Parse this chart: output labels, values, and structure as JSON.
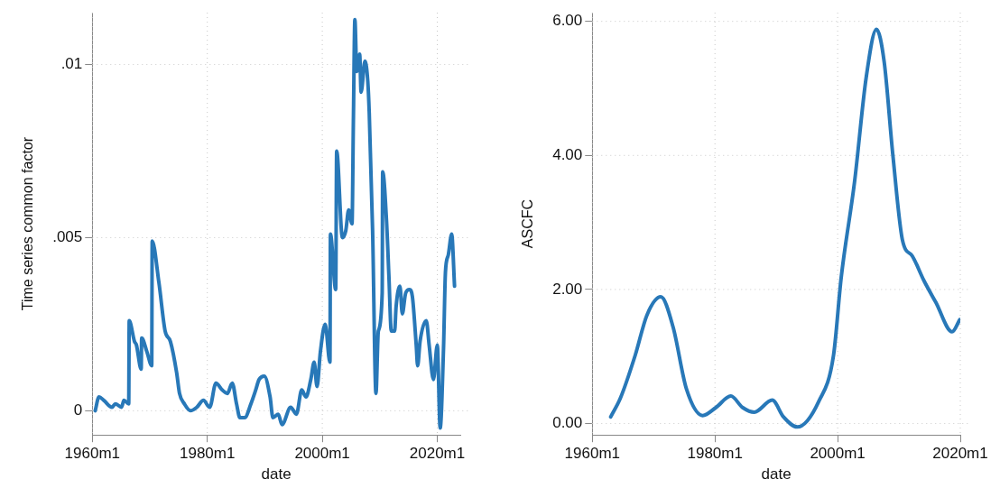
{
  "chart_data": [
    {
      "type": "line",
      "xlabel": "date",
      "ylabel": "Time series common factor",
      "color": "#2878b8",
      "marker": "none",
      "grid": true,
      "x": [
        "1960-07",
        "1961-03",
        "1962-01",
        "1963-06",
        "1964-01",
        "1965-02",
        "1965-07",
        "1966-05",
        "1966-06",
        "1967-05",
        "1967-09",
        "1968-07",
        "1968-08",
        "1969-07",
        "1970-05",
        "1970-06",
        "1971-08",
        "1972-09",
        "1973-08",
        "1974-09",
        "1975-03",
        "1976-01",
        "1977-02",
        "1978-03",
        "1979-05",
        "1980-06",
        "1981-07",
        "1982-08",
        "1983-07",
        "1984-05",
        "1985-02",
        "1985-09",
        "1986-07",
        "1987-08",
        "1988-06",
        "1989-01",
        "1989-12",
        "1990-12",
        "1991-06",
        "1992-05",
        "1993-01",
        "1994-07",
        "1995-07",
        "1996-06",
        "1997-03",
        "1998-01",
        "1998-08",
        "1999-02",
        "1999-09",
        "2000-07",
        "2001-05",
        "2001-06",
        "2002-05",
        "2002-07",
        "2003-07",
        "2004-02",
        "2004-08",
        "2005-03",
        "2005-06",
        "2005-09",
        "2006-01",
        "2006-07",
        "2006-10",
        "2007-06",
        "2007-12",
        "2008-03",
        "2008-10",
        "2009-05",
        "2009-10",
        "2010-06",
        "2010-07",
        "2011-03",
        "2011-08",
        "2012-01",
        "2012-08",
        "2012-11",
        "2013-07",
        "2013-12",
        "2014-07",
        "2015-03",
        "2015-09",
        "2016-05",
        "2016-08",
        "2017-01",
        "2018-02",
        "2018-08",
        "2019-05",
        "2020-01",
        "2020-07",
        "2021-02",
        "2021-06",
        "2021-12",
        "2022-07",
        "2023-01"
      ],
      "values": [
        0,
        0.0004,
        0.0003,
        0.0001,
        0.0002,
        0.0001,
        0.0003,
        0.0002,
        0.0026,
        0.002,
        0.0019,
        0.0012,
        0.0021,
        0.0017,
        0.0013,
        0.0049,
        0.0037,
        0.0023,
        0.002,
        0.0011,
        0.0005,
        0.0002,
        0,
        0.0001,
        0.0003,
        0.0001,
        0.0008,
        0.0006,
        0.0005,
        0.0008,
        0.0002,
        -0.0002,
        -0.0002,
        0.0002,
        0.0006,
        0.0009,
        0.001,
        0.0004,
        -0.0002,
        -0.0001,
        -0.0004,
        0.0001,
        -0.0001,
        0.0006,
        0.0004,
        0.0009,
        0.0014,
        0.0007,
        0.0017,
        0.0025,
        0.0014,
        0.0051,
        0.0035,
        0.0075,
        0.005,
        0.0052,
        0.0058,
        0.0054,
        0.0085,
        0.0113,
        0.0098,
        0.0103,
        0.0092,
        0.0101,
        0.0095,
        0.0086,
        0.0052,
        0.0005,
        0.0023,
        0.0034,
        0.0069,
        0.0055,
        0.0039,
        0.0023,
        0.0023,
        0.003,
        0.0036,
        0.0028,
        0.0034,
        0.0035,
        0.0033,
        0.0019,
        0.0013,
        0.002,
        0.0026,
        0.0019,
        0.0009,
        0.0019,
        -0.0005,
        0.0018,
        0.004,
        0.0045,
        0.0051,
        0.0036
      ],
      "xlim": [
        "1960-01",
        "2024-01"
      ],
      "xticks": [
        {
          "value": "1960-01",
          "label": "1960m1"
        },
        {
          "value": "1980-01",
          "label": "1980m1"
        },
        {
          "value": "2000-01",
          "label": "2000m1"
        },
        {
          "value": "2020-01",
          "label": "2020m1"
        }
      ],
      "ylim": [
        -0.0007,
        0.0115
      ],
      "yticks": [
        {
          "value": 0,
          "label": "0"
        },
        {
          "value": 0.005,
          "label": ".005"
        },
        {
          "value": 0.01,
          "label": ".01"
        }
      ]
    },
    {
      "type": "line",
      "xlabel": "date",
      "ylabel": "ASCFC",
      "color": "#2878b8",
      "marker": "none",
      "grid": true,
      "x": [
        "1963-01",
        "1964-08",
        "1967-01",
        "1968-12",
        "1971-03",
        "1973-03",
        "1975-05",
        "1978-01",
        "1980-03",
        "1982-08",
        "1984-07",
        "1986-06",
        "1989-05",
        "1991-03",
        "1993-06",
        "1996-12",
        "1999-05",
        "2000-08",
        "2002-10",
        "2004-09",
        "2006-05",
        "2007-08",
        "2009-01",
        "2010-08",
        "2012-03",
        "2014-02",
        "2016-01",
        "2018-09",
        "2019-12"
      ],
      "values": [
        0.1,
        0.38,
        1.02,
        1.62,
        1.89,
        1.44,
        0.52,
        0.12,
        0.24,
        0.41,
        0.24,
        0.17,
        0.35,
        0.1,
        -0.05,
        0.33,
        1.02,
        2.18,
        3.6,
        5.17,
        5.88,
        5.4,
        4.01,
        2.73,
        2.5,
        2.13,
        1.81,
        1.37,
        1.55
      ],
      "xlim": [
        "1960-01",
        "2020-01"
      ],
      "xticks": [
        {
          "value": "1960-01",
          "label": "1960m1"
        },
        {
          "value": "1980-01",
          "label": "1980m1"
        },
        {
          "value": "2000-01",
          "label": "2000m1"
        },
        {
          "value": "2020-01",
          "label": "2020m1"
        }
      ],
      "ylim": [
        -0.17,
        6.13
      ],
      "yticks": [
        {
          "value": 0,
          "label": "0.00"
        },
        {
          "value": 2,
          "label": "2.00"
        },
        {
          "value": 4,
          "label": "4.00"
        },
        {
          "value": 6,
          "label": "6.00"
        }
      ]
    }
  ]
}
